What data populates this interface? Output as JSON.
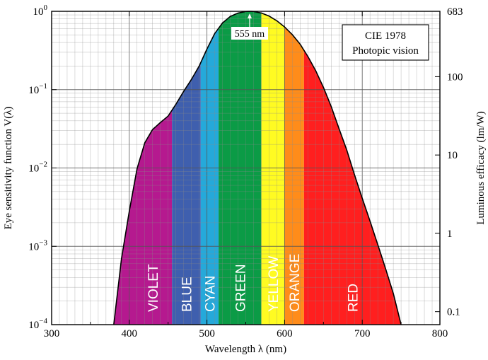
{
  "chart_data": {
    "type": "area",
    "title": "",
    "xlabel": "Wavelength λ  (nm)",
    "ylabel_left": "Eye  sensitivity  function   V(λ)",
    "ylabel_right": "Luminous  efficacy   (lm/W)",
    "xlim": [
      300,
      800
    ],
    "ylim": [
      0.0001,
      1
    ],
    "yscale": "log",
    "grid": true,
    "x_ticks": [
      300,
      400,
      500,
      600,
      700,
      800
    ],
    "y_ticks_left": [
      {
        "value": 1,
        "mantissa": "10",
        "exp": "0"
      },
      {
        "value": 0.1,
        "mantissa": "10",
        "exp": "−1"
      },
      {
        "value": 0.01,
        "mantissa": "10",
        "exp": "−2"
      },
      {
        "value": 0.001,
        "mantissa": "10",
        "exp": "−3"
      },
      {
        "value": 0.0001,
        "mantissa": "10",
        "exp": "−4"
      }
    ],
    "y_ticks_right": [
      {
        "label": "683",
        "value": 1
      },
      {
        "label": "100",
        "value": 0.1464
      },
      {
        "label": "10",
        "value": 0.01464
      },
      {
        "label": "1",
        "value": 0.001464
      },
      {
        "label": "0.1",
        "value": 0.0001464
      }
    ],
    "series": [
      {
        "x": [
          380,
          390,
          400,
          410,
          420,
          430,
          440,
          450,
          460,
          470,
          480,
          490,
          500,
          510,
          520,
          530,
          540,
          550,
          555,
          560,
          570,
          580,
          590,
          600,
          610,
          620,
          630,
          640,
          650,
          660,
          670,
          680,
          690,
          700,
          710,
          720,
          730,
          740,
          750
        ],
        "y": [
          0.0001,
          0.0007,
          0.0028,
          0.0098,
          0.021,
          0.031,
          0.038,
          0.046,
          0.065,
          0.095,
          0.135,
          0.2,
          0.33,
          0.52,
          0.71,
          0.86,
          0.95,
          0.995,
          1.0,
          0.995,
          0.952,
          0.87,
          0.757,
          0.631,
          0.503,
          0.381,
          0.265,
          0.175,
          0.107,
          0.061,
          0.032,
          0.017,
          0.0082,
          0.0041,
          0.0021,
          0.00105,
          0.00052,
          0.00025,
          0.0001
        ]
      }
    ],
    "bands": [
      {
        "label": "VIOLET",
        "from": 380,
        "to": 455,
        "color": "#b5198f"
      },
      {
        "label": "BLUE",
        "from": 455,
        "to": 492,
        "color": "#3f5fae"
      },
      {
        "label": "CYAN",
        "from": 492,
        "to": 515,
        "color": "#25a9da"
      },
      {
        "label": "GREEN",
        "from": 515,
        "to": 570,
        "color": "#0b9b46"
      },
      {
        "label": "YELLOW",
        "from": 570,
        "to": 600,
        "color": "#fffb22"
      },
      {
        "label": "ORANGE",
        "from": 600,
        "to": 625,
        "color": "#ff8c1a"
      },
      {
        "label": "RED",
        "from": 625,
        "to": 750,
        "color": "#ff1f1f"
      }
    ],
    "annotation": {
      "text": "555 nm",
      "x": 555
    },
    "legend_box": {
      "line1": "CIE 1978",
      "line2": "Photopic vision",
      "placement": "top-right"
    }
  }
}
